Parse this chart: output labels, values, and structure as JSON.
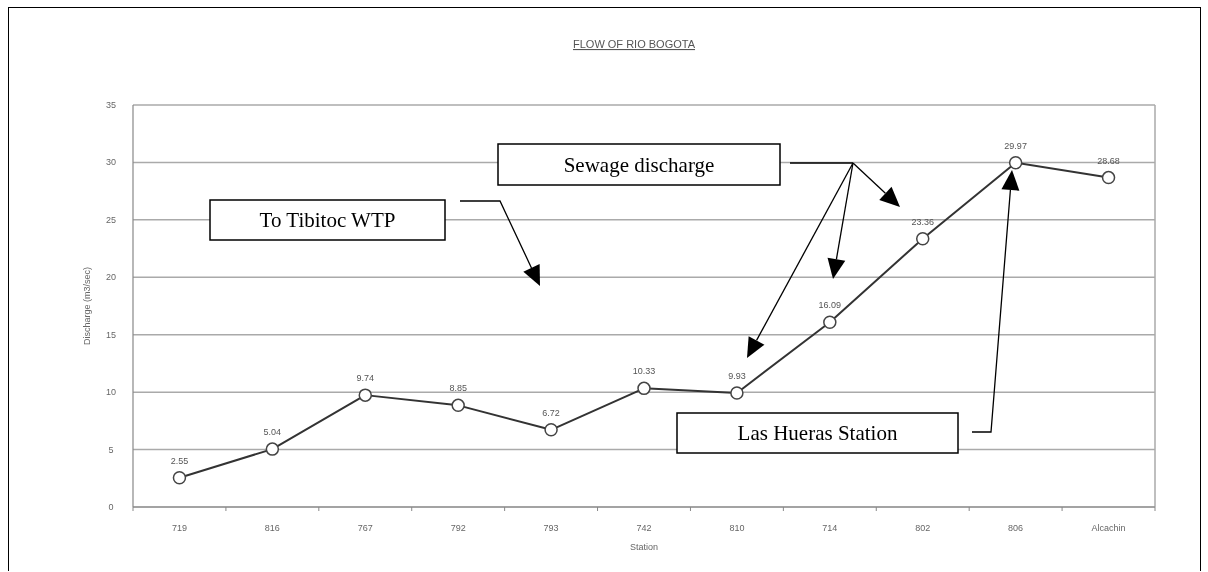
{
  "chart_data": {
    "type": "line",
    "title": "FLOW OF RIO BOGOTA",
    "xlabel": "Station",
    "ylabel": "Discharge (m3/sec)",
    "categories": [
      "719",
      "816",
      "767",
      "792",
      "793",
      "742",
      "810",
      "714",
      "802",
      "806",
      "Alcachin"
    ],
    "series": [
      {
        "color": "#333333",
        "values": [
          2.55,
          5.04,
          9.74,
          8.85,
          6.72,
          10.33,
          9.93,
          16.09,
          23.36,
          29.97,
          28.68
        ]
      }
    ],
    "ylim": [
      0,
      35
    ],
    "yticks": [
      0,
      5,
      10,
      15,
      20,
      25,
      30,
      35
    ],
    "grid": "y",
    "marker": "circle",
    "line_style": "solid",
    "data_labels": true,
    "annotations": [
      "To Tibitoc WTP",
      "Sewage discharge",
      "Las Hueras Station"
    ]
  }
}
